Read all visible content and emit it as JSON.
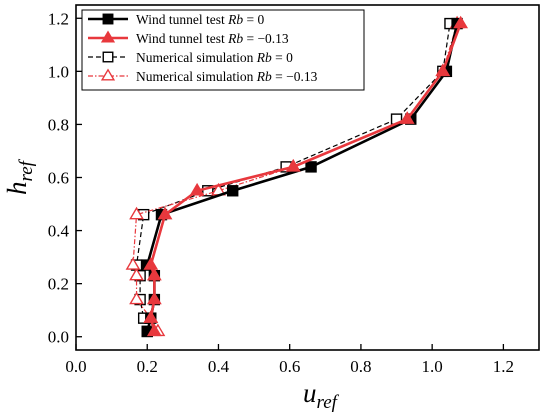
{
  "chart_data": {
    "type": "line",
    "xlabel": {
      "main": "u",
      "sub": "ref"
    },
    "ylabel": {
      "main": "h",
      "sub": "ref"
    },
    "xlim": [
      0.0,
      1.3
    ],
    "ylim": [
      -0.05,
      1.25
    ],
    "xticks": [
      "0.0",
      "0.2",
      "0.4",
      "0.6",
      "0.8",
      "1.0",
      "1.2"
    ],
    "yticks": [
      "0.0",
      "0.2",
      "0.4",
      "0.6",
      "0.8",
      "1.0",
      "1.2"
    ],
    "grid": false,
    "legend_position": "top-left",
    "series": [
      {
        "name": "Wind tunnel test Rb = 0",
        "legend": {
          "prefix": "Wind tunnel test ",
          "var": "Rb",
          "suffix": " = 0"
        },
        "color": "#000000",
        "marker": "filled-square",
        "line": "solid",
        "x": [
          0.2,
          0.21,
          0.22,
          0.22,
          0.2,
          0.24,
          0.44,
          0.66,
          0.94,
          1.04,
          1.07
        ],
        "y": [
          0.02,
          0.07,
          0.14,
          0.23,
          0.27,
          0.46,
          0.55,
          0.64,
          0.82,
          1.0,
          1.18
        ]
      },
      {
        "name": "Wind tunnel test Rb = -0.13",
        "legend": {
          "prefix": "Wind tunnel test ",
          "var": "Rb",
          "suffix": " = −0.13"
        },
        "color": "#e8383d",
        "marker": "filled-triangle",
        "line": "solid",
        "x": [
          0.22,
          0.21,
          0.22,
          0.22,
          0.21,
          0.25,
          0.34,
          0.61,
          0.93,
          1.03,
          1.08
        ],
        "y": [
          0.02,
          0.07,
          0.14,
          0.23,
          0.27,
          0.46,
          0.55,
          0.64,
          0.82,
          1.0,
          1.18
        ]
      },
      {
        "name": "Numerical simulation Rb = 0",
        "legend": {
          "prefix": "Numerical simulation ",
          "var": "Rb",
          "suffix": " = 0"
        },
        "color": "#000000",
        "marker": "open-square",
        "line": "dashed",
        "x": [
          0.2,
          0.19,
          0.18,
          0.18,
          0.17,
          0.19,
          0.37,
          0.59,
          0.9,
          1.03,
          1.05
        ],
        "y": [
          0.02,
          0.07,
          0.14,
          0.23,
          0.27,
          0.46,
          0.55,
          0.64,
          0.82,
          1.0,
          1.18
        ]
      },
      {
        "name": "Numerical simulation Rb = -0.13",
        "legend": {
          "prefix": "Numerical simulation ",
          "var": "Rb",
          "suffix": " = −0.13"
        },
        "color": "#e8383d",
        "marker": "open-triangle",
        "line": "dash-dot",
        "x": [
          0.23,
          0.21,
          0.17,
          0.17,
          0.16,
          0.17,
          0.4,
          0.61,
          0.93,
          1.03,
          1.07
        ],
        "y": [
          0.02,
          0.07,
          0.14,
          0.23,
          0.27,
          0.46,
          0.55,
          0.64,
          0.82,
          1.0,
          1.18
        ]
      }
    ]
  }
}
